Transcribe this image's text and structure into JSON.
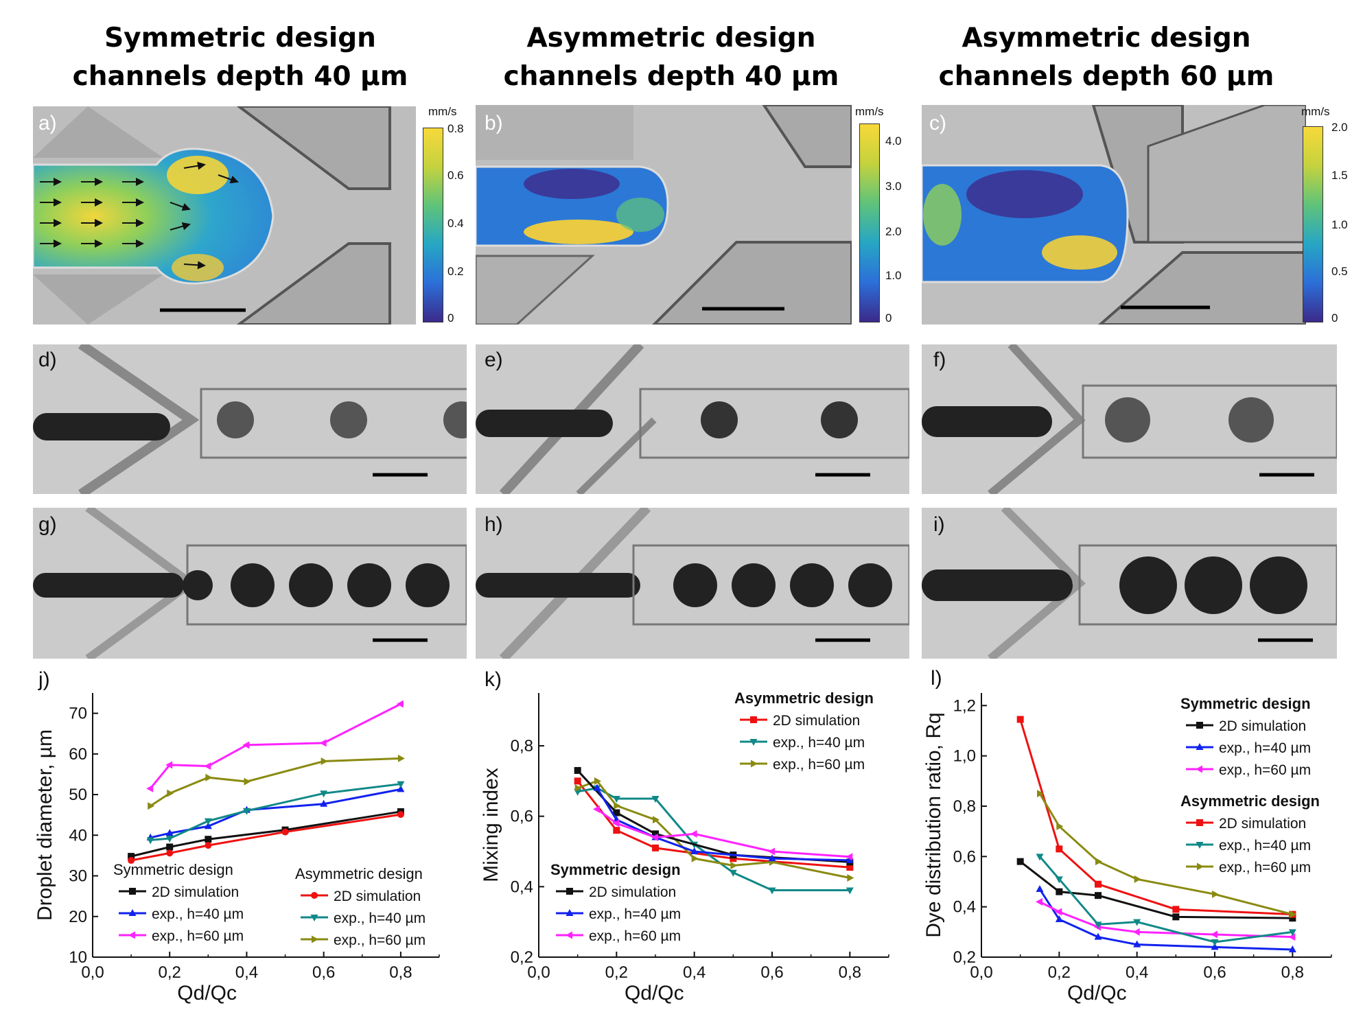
{
  "titles": [
    {
      "line1": "Symmetric design",
      "line2": "channels depth 40 µm"
    },
    {
      "line1": "Asymmetric design",
      "line2": "channels depth 40 µm"
    },
    {
      "line1": "Asymmetric design",
      "line2": "channels depth 60 µm"
    }
  ],
  "panel_labels": [
    "a)",
    "b)",
    "c)",
    "d)",
    "e)",
    "f)",
    "g)",
    "h)",
    "i)",
    "j)",
    "k)",
    "l)"
  ],
  "colorbars": [
    {
      "unit": "mm/s",
      "ticks": [
        "0.8",
        "0.6",
        "0.4",
        "0.2",
        "0"
      ]
    },
    {
      "unit": "mm/s",
      "ticks": [
        "4.0",
        "3.0",
        "2.0",
        "1.0",
        "0"
      ]
    },
    {
      "unit": "mm/s",
      "ticks": [
        "2.0",
        "1.5",
        "1.0",
        "0.5",
        "0"
      ]
    }
  ],
  "colors": {
    "black": "#111111",
    "red": "#ee1111",
    "blue": "#1122ee",
    "magenta": "#ff22ff",
    "teal": "#118888",
    "olive": "#8a8a11",
    "viridis_low": "#3b2a8a",
    "viridis_mid": "#27a6c4",
    "viridis_high": "#f7d93a"
  },
  "chart_data": [
    {
      "type": "line",
      "xlabel": "Qd/Qc",
      "ylabel": "Droplet diameter, µm",
      "xlim": [
        0,
        0.9
      ],
      "ylim": [
        10,
        75
      ],
      "xticks": [
        "0,0",
        "0,2",
        "0,4",
        "0,6",
        "0,8"
      ],
      "yticks": [
        "10",
        "20",
        "30",
        "40",
        "50",
        "60",
        "70"
      ],
      "legend_groups": [
        {
          "title": "Symmetric design",
          "bold": false,
          "entries": [
            "2D simulation",
            "exp., h=40 µm",
            "exp., h=60 µm"
          ]
        },
        {
          "title": "Asymmetric design",
          "bold": false,
          "entries": [
            "2D simulation",
            "exp., h=40 µm",
            "exp., h=60 µm"
          ]
        }
      ],
      "series": [
        {
          "name": "Symmetric design — 2D simulation",
          "color": "black",
          "marker": "square",
          "x": [
            0.1,
            0.2,
            0.3,
            0.5,
            0.8
          ],
          "y": [
            34.8,
            37.1,
            39.0,
            41.3,
            45.8
          ]
        },
        {
          "name": "Symmetric design — exp., h=40 µm",
          "color": "blue",
          "marker": "triangle-up",
          "x": [
            0.15,
            0.2,
            0.3,
            0.4,
            0.6,
            0.8
          ],
          "y": [
            39.4,
            40.5,
            42.2,
            46.2,
            47.7,
            51.3
          ]
        },
        {
          "name": "Symmetric design — exp., h=60 µm",
          "color": "magenta",
          "marker": "triangle-left",
          "x": [
            0.15,
            0.2,
            0.3,
            0.4,
            0.6,
            0.8
          ],
          "y": [
            51.5,
            57.3,
            57.0,
            62.2,
            62.7,
            72.3
          ]
        },
        {
          "name": "Asymmetric design — 2D simulation",
          "color": "red",
          "marker": "circle",
          "x": [
            0.1,
            0.2,
            0.3,
            0.5,
            0.8
          ],
          "y": [
            33.8,
            35.6,
            37.5,
            40.8,
            45.1
          ]
        },
        {
          "name": "Asymmetric design — exp., h=40 µm",
          "color": "teal",
          "marker": "triangle-down",
          "x": [
            0.15,
            0.2,
            0.3,
            0.4,
            0.6,
            0.8
          ],
          "y": [
            38.8,
            39.2,
            43.5,
            46.0,
            50.3,
            52.6
          ]
        },
        {
          "name": "Asymmetric design — exp., h=60 µm",
          "color": "olive",
          "marker": "triangle-right",
          "x": [
            0.15,
            0.2,
            0.3,
            0.4,
            0.6,
            0.8
          ],
          "y": [
            47.2,
            50.3,
            54.2,
            53.2,
            58.2,
            58.9
          ]
        }
      ]
    },
    {
      "type": "line",
      "xlabel": "Qd/Qc",
      "ylabel": "Mixing index",
      "xlim": [
        0,
        0.9
      ],
      "ylim": [
        0.2,
        0.95
      ],
      "xticks": [
        "0,0",
        "0,2",
        "0,4",
        "0,6",
        "0,8"
      ],
      "yticks": [
        "0,2",
        "0,4",
        "0,6",
        "0,8"
      ],
      "legend_groups": [
        {
          "title": "Asymmetric design",
          "bold": true,
          "entries": [
            "2D simulation",
            "exp., h=40 µm",
            "exp., h=60 µm"
          ]
        },
        {
          "title": "Symmetric design",
          "bold": true,
          "entries": [
            "2D simulation",
            "exp., h=40 µm",
            "exp., h=60 µm"
          ]
        }
      ],
      "series": [
        {
          "name": "Asymmetric design — 2D simulation",
          "color": "red",
          "marker": "square",
          "x": [
            0.1,
            0.2,
            0.3,
            0.5,
            0.8
          ],
          "y": [
            0.7,
            0.56,
            0.51,
            0.48,
            0.455
          ]
        },
        {
          "name": "Asymmetric design — exp., h=40 µm",
          "color": "teal",
          "marker": "triangle-down",
          "x": [
            0.1,
            0.15,
            0.2,
            0.3,
            0.4,
            0.5,
            0.6,
            0.8
          ],
          "y": [
            0.67,
            0.68,
            0.65,
            0.65,
            0.52,
            0.44,
            0.39,
            0.39
          ]
        },
        {
          "name": "Asymmetric design — exp., h=60 µm",
          "color": "olive",
          "marker": "triangle-right",
          "x": [
            0.1,
            0.15,
            0.2,
            0.3,
            0.4,
            0.5,
            0.6,
            0.8
          ],
          "y": [
            0.68,
            0.7,
            0.63,
            0.59,
            0.48,
            0.46,
            0.47,
            0.425
          ]
        },
        {
          "name": "Symmetric design — 2D simulation",
          "color": "black",
          "marker": "square",
          "x": [
            0.1,
            0.2,
            0.3,
            0.5,
            0.8
          ],
          "y": [
            0.73,
            0.61,
            0.55,
            0.49,
            0.47
          ]
        },
        {
          "name": "Symmetric design — exp., h=40 µm",
          "color": "blue",
          "marker": "triangle-up",
          "x": [
            0.15,
            0.2,
            0.3,
            0.4,
            0.6,
            0.8
          ],
          "y": [
            0.68,
            0.59,
            0.54,
            0.5,
            0.48,
            0.475
          ]
        },
        {
          "name": "Symmetric design — exp., h=60 µm",
          "color": "magenta",
          "marker": "triangle-left",
          "x": [
            0.15,
            0.2,
            0.3,
            0.4,
            0.6,
            0.8
          ],
          "y": [
            0.62,
            0.58,
            0.54,
            0.55,
            0.5,
            0.485
          ]
        }
      ]
    },
    {
      "type": "line",
      "xlabel": "Qd/Qc",
      "ylabel": "Dye distribution ratio, Rq",
      "xlim": [
        0,
        0.9
      ],
      "ylim": [
        0.2,
        1.25
      ],
      "xticks": [
        "0,0",
        "0,2",
        "0,4",
        "0,6",
        "0,8"
      ],
      "yticks": [
        "0,2",
        "0,4",
        "0,6",
        "0,8",
        "1,0",
        "1,2"
      ],
      "legend_groups": [
        {
          "title": "Symmetric design",
          "bold": true,
          "entries": [
            "2D simulation",
            "exp., h=40 µm",
            "exp., h=60 µm"
          ]
        },
        {
          "title": "Asymmetric design",
          "bold": true,
          "entries": [
            "2D simulation",
            "exp., h=40 µm",
            "exp., h=60 µm"
          ]
        }
      ],
      "series": [
        {
          "name": "Symmetric design — 2D simulation",
          "color": "black",
          "marker": "square",
          "x": [
            0.1,
            0.2,
            0.3,
            0.5,
            0.8
          ],
          "y": [
            0.58,
            0.46,
            0.445,
            0.36,
            0.355
          ]
        },
        {
          "name": "Symmetric design — exp., h=40 µm",
          "color": "blue",
          "marker": "triangle-up",
          "x": [
            0.15,
            0.2,
            0.3,
            0.4,
            0.6,
            0.8
          ],
          "y": [
            0.47,
            0.35,
            0.28,
            0.25,
            0.24,
            0.23
          ]
        },
        {
          "name": "Symmetric design — exp., h=60 µm",
          "color": "magenta",
          "marker": "triangle-left",
          "x": [
            0.15,
            0.2,
            0.3,
            0.4,
            0.6,
            0.8
          ],
          "y": [
            0.42,
            0.38,
            0.32,
            0.3,
            0.29,
            0.28
          ]
        },
        {
          "name": "Asymmetric design — 2D simulation",
          "color": "red",
          "marker": "square",
          "x": [
            0.1,
            0.2,
            0.3,
            0.5,
            0.8
          ],
          "y": [
            1.145,
            0.63,
            0.49,
            0.39,
            0.37
          ]
        },
        {
          "name": "Asymmetric design — exp., h=40 µm",
          "color": "teal",
          "marker": "triangle-down",
          "x": [
            0.15,
            0.2,
            0.3,
            0.4,
            0.6,
            0.8
          ],
          "y": [
            0.6,
            0.51,
            0.33,
            0.34,
            0.26,
            0.3
          ]
        },
        {
          "name": "Asymmetric design — exp., h=60 µm",
          "color": "olive",
          "marker": "triangle-right",
          "x": [
            0.15,
            0.2,
            0.3,
            0.4,
            0.6,
            0.8
          ],
          "y": [
            0.85,
            0.72,
            0.58,
            0.51,
            0.45,
            0.37
          ]
        }
      ]
    }
  ]
}
